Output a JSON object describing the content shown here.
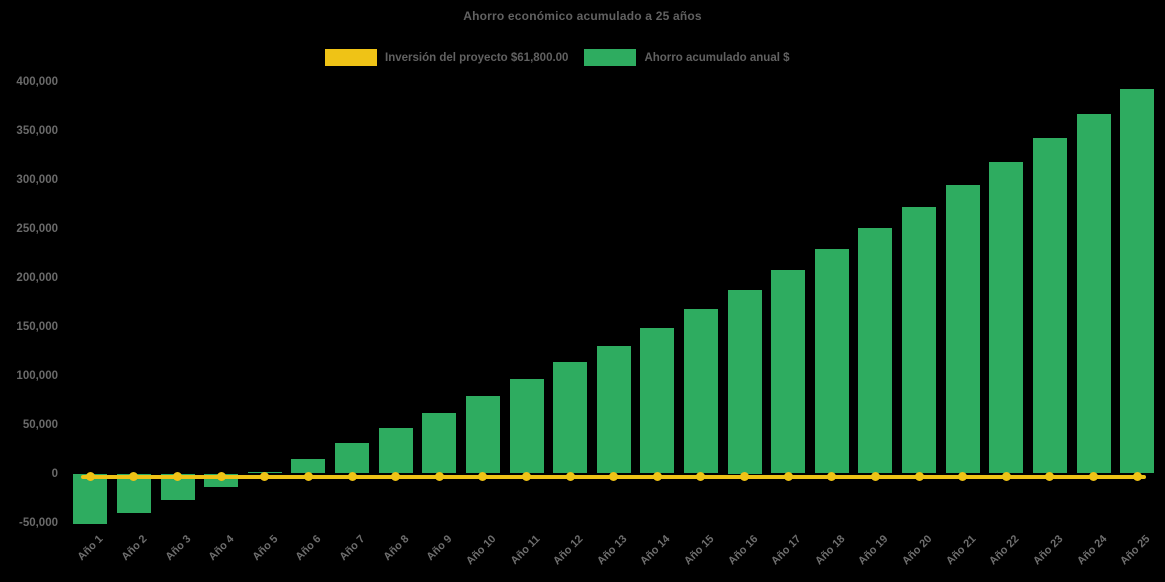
{
  "title": "Ahorro económico acumulado a 25 años",
  "legend": [
    {
      "label": "Inversión del proyecto $61,800.00",
      "color": "#EFC316",
      "swatch": "yellow-swatch"
    },
    {
      "label": "Ahorro acumulado anual $",
      "color": "#2EAC60",
      "swatch": "green-swatch"
    }
  ],
  "colors": {
    "background": "#000000",
    "title_text": "#616161",
    "axis_text": "#6A6A6A",
    "bar_green": "#2EAC60",
    "line_yellow": "#EFC316"
  },
  "chart_data": {
    "type": "bar",
    "title": "Ahorro económico acumulado a 25 años",
    "categories": [
      "Año 1",
      "Año 2",
      "Año 3",
      "Año 4",
      "Año 5",
      "Año 6",
      "Año 7",
      "Año 8",
      "Año 9",
      "Año 10",
      "Año 11",
      "Año 12",
      "Año 13",
      "Año 14",
      "Año 15",
      "Año 16",
      "Año 17",
      "Año 18",
      "Año 19",
      "Año 20",
      "Año 21",
      "Año 22",
      "Año 23",
      "Año 24",
      "Año 25"
    ],
    "series": [
      {
        "name": "Ahorro acumulado anual $",
        "type": "bar",
        "color": "#2EAC60",
        "values": [
          -52000,
          -40500,
          -27000,
          -13500,
          2000,
          15000,
          31000,
          46000,
          62000,
          79500,
          96500,
          113500,
          130500,
          148500,
          167500,
          187500,
          208000,
          229000,
          250500,
          272000,
          294500,
          318000,
          342000,
          366500,
          392000
        ]
      },
      {
        "name": "Inversión del proyecto $61,800.00",
        "type": "line",
        "color": "#EFC316",
        "marker": "circle",
        "values": [
          0,
          0,
          0,
          0,
          0,
          0,
          0,
          0,
          0,
          0,
          0,
          0,
          0,
          0,
          0,
          0,
          0,
          0,
          0,
          0,
          0,
          0,
          0,
          0,
          0
        ]
      }
    ],
    "xlabel": "",
    "ylabel": "",
    "ylim": [
      -50000,
      400000
    ],
    "y_ticks": [
      400000,
      350000,
      300000,
      250000,
      200000,
      150000,
      100000,
      50000,
      0,
      -50000
    ],
    "grid": false,
    "legend_position": "top-center"
  }
}
